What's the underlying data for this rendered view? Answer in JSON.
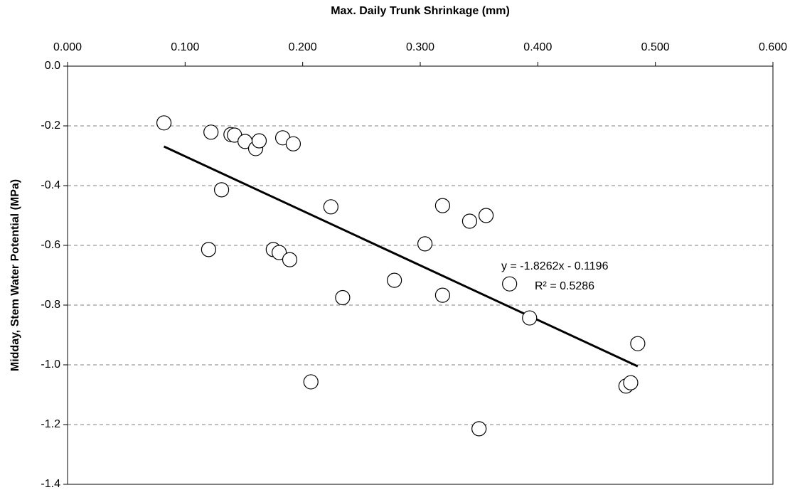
{
  "chart_data": {
    "type": "scatter",
    "x_label": "Max. Daily Trunk Shrinkage (mm)",
    "y_label": "Midday, Stem Water Potential (MPa)",
    "x": [
      0.082,
      0.122,
      0.139,
      0.142,
      0.151,
      0.16,
      0.163,
      0.183,
      0.192,
      0.131,
      0.12,
      0.175,
      0.18,
      0.189,
      0.207,
      0.224,
      0.234,
      0.278,
      0.304,
      0.319,
      0.319,
      0.342,
      0.356,
      0.35,
      0.376,
      0.393,
      0.475,
      0.479,
      0.485
    ],
    "values": [
      -0.19,
      -0.221,
      -0.229,
      -0.231,
      -0.252,
      -0.276,
      -0.25,
      -0.24,
      -0.26,
      -0.414,
      -0.614,
      -0.614,
      -0.624,
      -0.648,
      -1.057,
      -0.471,
      -0.775,
      -0.717,
      -0.595,
      -0.467,
      -0.767,
      -0.519,
      -0.5,
      -1.214,
      -0.729,
      -0.843,
      -1.071,
      -1.06,
      -0.929
    ],
    "trendline": {
      "x": [
        0.082,
        0.485
      ],
      "values": [
        -0.269,
        -1.005
      ]
    },
    "annotations": [
      "y = -1.8262x - 0.1196",
      "R² = 0.5286"
    ],
    "xlim": [
      0,
      0.6
    ],
    "xticks": [
      {
        "value": 0,
        "label": "0.000"
      },
      {
        "value": 0.1,
        "label": "0.100"
      },
      {
        "value": 0.2,
        "label": "0.200"
      },
      {
        "value": 0.3,
        "label": "0.300"
      },
      {
        "value": 0.4,
        "label": "0.400"
      },
      {
        "value": 0.5,
        "label": "0.500"
      },
      {
        "value": 0.6,
        "label": "0.600"
      }
    ],
    "ylim": [
      -1.4,
      0
    ],
    "yticks": [
      {
        "value": 0,
        "label": "0.0"
      },
      -0.2,
      -0.4,
      -0.6,
      -0.8,
      {
        "value": -1,
        "label": "-1.0"
      },
      -1.2,
      -1.4
    ],
    "grid": true,
    "x_axis_position": "top",
    "marker_color": "#000000"
  }
}
